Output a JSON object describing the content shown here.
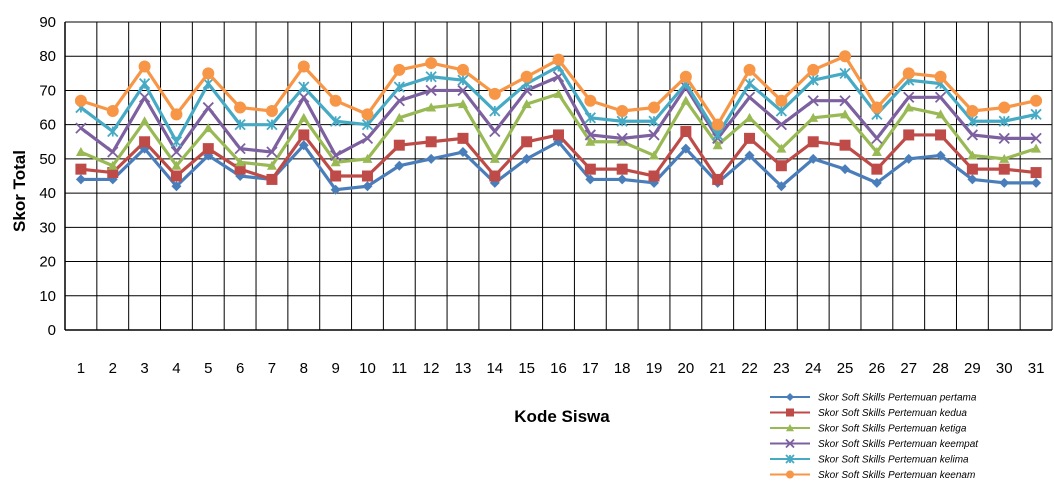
{
  "chart_data": {
    "type": "line",
    "ylabel": "Skor Total",
    "xlabel": "Kode Siswa",
    "ylim": [
      0,
      90
    ],
    "yticks": [
      0,
      10,
      20,
      30,
      40,
      50,
      60,
      70,
      80,
      90
    ],
    "grid": true,
    "legend_position": "bottom-right",
    "x": [
      1,
      2,
      3,
      4,
      5,
      6,
      7,
      8,
      9,
      10,
      11,
      12,
      13,
      14,
      15,
      16,
      17,
      18,
      19,
      20,
      21,
      22,
      23,
      24,
      25,
      26,
      27,
      28,
      29,
      30,
      31
    ],
    "series": [
      {
        "name": "Skor Soft Skills Pertemuan pertama",
        "color": "#4a7ebb",
        "marker": "diamond",
        "values": [
          44,
          44,
          53,
          42,
          51,
          45,
          44,
          54,
          41,
          42,
          48,
          50,
          52,
          43,
          50,
          55,
          44,
          44,
          43,
          53,
          43,
          51,
          42,
          50,
          47,
          43,
          50,
          51,
          44,
          43,
          43
        ]
      },
      {
        "name": "Skor Soft Skills Pertemuan kedua",
        "color": "#be4b48",
        "marker": "square",
        "values": [
          47,
          46,
          55,
          45,
          53,
          47,
          44,
          57,
          45,
          45,
          54,
          55,
          56,
          45,
          55,
          57,
          47,
          47,
          45,
          58,
          44,
          56,
          48,
          55,
          54,
          47,
          57,
          57,
          47,
          47,
          46
        ]
      },
      {
        "name": "Skor Soft Skills Pertemuan ketiga",
        "color": "#98b954",
        "marker": "triangle",
        "values": [
          52,
          48,
          61,
          48,
          59,
          49,
          48,
          62,
          49,
          50,
          62,
          65,
          66,
          50,
          66,
          69,
          55,
          55,
          51,
          67,
          54,
          62,
          53,
          62,
          63,
          52,
          65,
          63,
          51,
          50,
          53
        ]
      },
      {
        "name": "Skor Soft Skills Pertemuan keempat",
        "color": "#7d60a0",
        "marker": "x",
        "values": [
          59,
          52,
          68,
          52,
          65,
          53,
          52,
          68,
          51,
          56,
          67,
          70,
          70,
          58,
          70,
          74,
          57,
          56,
          57,
          71,
          56,
          68,
          60,
          67,
          67,
          56,
          68,
          68,
          57,
          56,
          56
        ]
      },
      {
        "name": "Skor Soft Skills Pertemuan kelima",
        "color": "#46aac5",
        "marker": "star",
        "values": [
          65,
          58,
          72,
          55,
          72,
          60,
          60,
          71,
          61,
          60,
          71,
          74,
          73,
          64,
          72,
          77,
          62,
          61,
          61,
          72,
          57,
          72,
          64,
          73,
          75,
          63,
          73,
          72,
          61,
          61,
          63
        ]
      },
      {
        "name": "Skor Soft Skills Pertemuan keenam",
        "color": "#f79646",
        "marker": "circle",
        "values": [
          67,
          64,
          77,
          63,
          75,
          65,
          64,
          77,
          67,
          63,
          76,
          78,
          76,
          69,
          74,
          79,
          67,
          64,
          65,
          74,
          60,
          76,
          67,
          76,
          80,
          65,
          75,
          74,
          64,
          65,
          67
        ]
      }
    ]
  }
}
